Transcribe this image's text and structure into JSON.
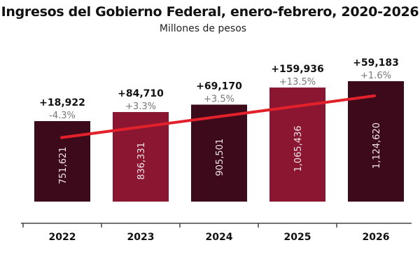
{
  "chart_data": {
    "type": "bar",
    "title": "Ingresos del Gobierno Federal, enero-febrero, 2020-2026",
    "subtitle": "Millones de pesos",
    "xlabel": "",
    "ylabel": "",
    "categories": [
      "2022",
      "2023",
      "2024",
      "2025",
      "2026"
    ],
    "values": [
      751621,
      836331,
      905501,
      1065436,
      1124620
    ],
    "value_labels": [
      "751,621",
      "836,331",
      "905,501",
      "1,065,436",
      "1,124,620"
    ],
    "change_abs_labels": [
      "+18,922",
      "+84,710",
      "+69,170",
      "+159,936",
      "+59,183"
    ],
    "change_pct_labels": [
      "-4.3%",
      "+3.3%",
      "+3.5%",
      "+13.5%",
      "+1.6%"
    ],
    "bar_colors": [
      "#3d0a1c",
      "#8a1631",
      "#3d0a1c",
      "#8a1631",
      "#3d0a1c"
    ],
    "trend_line": {
      "color": "#e3212b",
      "description": "linear trend across bars"
    },
    "grid": false,
    "legend": "none"
  }
}
